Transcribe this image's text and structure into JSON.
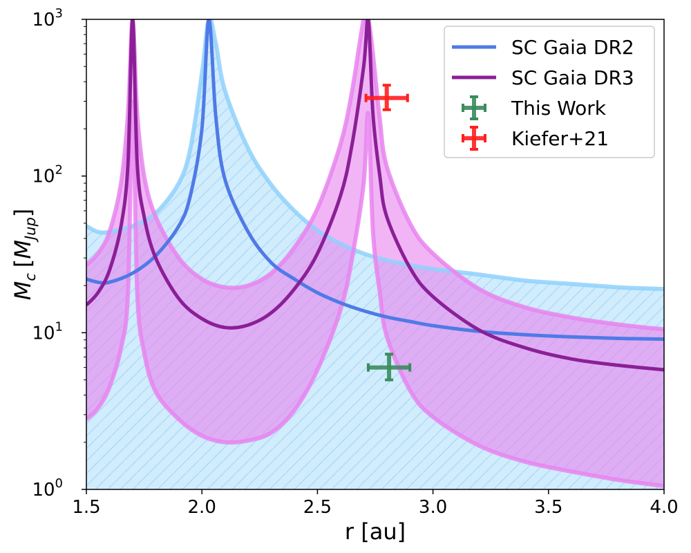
{
  "chart_data": {
    "type": "line",
    "title": "",
    "xlabel": "r [au]",
    "ylabel": {
      "main": "M",
      "sub_c": "c",
      "bracket_open": "[",
      "unit_main": "M",
      "unit_sub": "Jup",
      "bracket_close": "]"
    },
    "xlim": [
      1.5,
      4.0
    ],
    "ylim": [
      1,
      1000
    ],
    "yscale": "log",
    "grid": false,
    "legend_placement": "top-right",
    "x_ticks": [
      {
        "value": 1.5,
        "label": "1.5"
      },
      {
        "value": 2.0,
        "label": "2.0"
      },
      {
        "value": 2.5,
        "label": "2.5"
      },
      {
        "value": 3.0,
        "label": "3.0"
      },
      {
        "value": 3.5,
        "label": "3.5"
      },
      {
        "value": 4.0,
        "label": "4.0"
      }
    ],
    "y_ticks": [
      {
        "value": 1,
        "base": "10",
        "exp": "0"
      },
      {
        "value": 10,
        "base": "10",
        "exp": "1"
      },
      {
        "value": 100,
        "base": "10",
        "exp": "2"
      },
      {
        "value": 1000,
        "base": "10",
        "exp": "3"
      }
    ],
    "series": [
      {
        "name": "SC Gaia DR2",
        "color": "#4f7ae6",
        "band_color": "#8fd1fb",
        "x": [
          1.5,
          1.55,
          1.6,
          1.7,
          1.8,
          1.9,
          1.95,
          2.0,
          2.03,
          2.06,
          2.1,
          2.2,
          2.3,
          2.4,
          2.5,
          2.6,
          2.7,
          2.8,
          2.9,
          3.0,
          3.2,
          3.4,
          3.6,
          3.8,
          4.0
        ],
        "y": [
          22,
          21,
          21,
          24,
          31,
          48,
          75,
          200,
          1000,
          240,
          95,
          44,
          28,
          22,
          18,
          15.5,
          13.8,
          12.6,
          11.8,
          11.1,
          10.2,
          9.7,
          9.4,
          9.2,
          9.1
        ],
        "upper": [
          48,
          44,
          44,
          48,
          58,
          90,
          150,
          450,
          1000,
          700,
          350,
          150,
          88,
          60,
          45,
          37,
          32,
          29,
          27,
          25.5,
          23.5,
          21.5,
          20.5,
          19.5,
          19
        ],
        "lower": [
          1,
          1,
          1,
          1,
          1,
          1,
          1,
          1,
          1,
          1,
          1,
          1,
          1,
          1,
          1,
          1,
          1,
          1,
          1,
          1,
          1,
          1,
          1,
          1,
          1
        ],
        "lower_fill": "hatched"
      },
      {
        "name": "SC Gaia DR3",
        "color": "#8b1f96",
        "band_color": "#e784ee",
        "x": [
          1.5,
          1.55,
          1.6,
          1.65,
          1.68,
          1.7,
          1.72,
          1.75,
          1.8,
          1.9,
          2.0,
          2.1,
          2.2,
          2.3,
          2.4,
          2.5,
          2.6,
          2.65,
          2.7,
          2.72,
          2.74,
          2.77,
          2.8,
          2.9,
          3.0,
          3.2,
          3.4,
          3.6,
          3.8,
          4.0
        ],
        "y": [
          15,
          18,
          25,
          48,
          120,
          1000,
          120,
          55,
          30,
          16.5,
          12.3,
          10.8,
          11.2,
          13.4,
          19,
          32,
          75,
          160,
          500,
          1000,
          250,
          100,
          55,
          26,
          17,
          10.4,
          8,
          6.8,
          6.2,
          5.8
        ],
        "upper": [
          27,
          32,
          44,
          90,
          250,
          1000,
          250,
          100,
          55,
          30,
          22,
          19.5,
          20,
          24,
          35,
          62,
          160,
          350,
          1000,
          1000,
          600,
          230,
          115,
          50,
          32,
          19,
          14.5,
          12.5,
          11.3,
          10.5
        ],
        "lower": [
          2.8,
          3.3,
          4.5,
          8,
          18,
          300,
          18,
          7.5,
          4.2,
          2.8,
          2.2,
          2.0,
          2.05,
          2.3,
          3.2,
          5.8,
          14,
          30,
          90,
          250,
          45,
          18,
          9.5,
          4.3,
          2.9,
          1.9,
          1.5,
          1.3,
          1.15,
          1.05
        ]
      }
    ],
    "points": [
      {
        "name": "This Work",
        "color": "#3a8c5c",
        "x": 2.81,
        "y": 6.0,
        "xerr": [
          0.09,
          0.09
        ],
        "yerr": [
          1.0,
          1.3
        ]
      },
      {
        "name": "Kiefer+21",
        "color": "#ff1f1f",
        "x": 2.8,
        "y": 315,
        "xerr": [
          0.09,
          0.09
        ],
        "yerr": [
          50,
          65
        ]
      }
    ]
  }
}
